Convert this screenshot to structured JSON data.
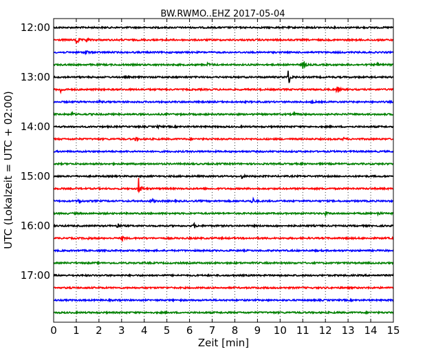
{
  "chart_data": {
    "type": "line",
    "title": "BW.RWMO..EHZ 2017-05-04",
    "xlabel": "Zeit  [min]",
    "ylabel": "UTC (Lokalzeit = UTC + 02:00)",
    "xlim": [
      0,
      15
    ],
    "x_ticks": [
      "0",
      "1",
      "2",
      "3",
      "4",
      "5",
      "6",
      "7",
      "8",
      "9",
      "10",
      "11",
      "12",
      "13",
      "14",
      "15"
    ],
    "y_ticks": [
      "12:00",
      "13:00",
      "14:00",
      "15:00",
      "16:00",
      "17:00"
    ],
    "grid": "vertical-dotted",
    "colors": [
      "#000000",
      "#ff0000",
      "#0000ff",
      "#008000"
    ],
    "traces": [
      {
        "start": "12:00",
        "events": []
      },
      {
        "start": "12:15",
        "events": [
          {
            "t": 1.0,
            "amp": 1.0
          },
          {
            "t": 1.45,
            "amp": 0.4
          },
          {
            "t": 4.9,
            "amp": 0.2
          }
        ]
      },
      {
        "start": "12:30",
        "events": [
          {
            "t": 1.4,
            "amp": 0.45
          }
        ]
      },
      {
        "start": "12:45",
        "events": [
          {
            "t": 6.8,
            "amp": 0.3
          },
          {
            "t": 11.0,
            "amp": 1.0
          },
          {
            "t": 14.3,
            "amp": 0.3
          }
        ]
      },
      {
        "start": "13:00",
        "events": [
          {
            "t": 10.35,
            "amp": 1.5
          }
        ]
      },
      {
        "start": "13:15",
        "events": [
          {
            "t": 0.3,
            "amp": 0.5
          },
          {
            "t": 12.5,
            "amp": 0.9
          }
        ]
      },
      {
        "start": "13:30",
        "events": [
          {
            "t": 2.0,
            "amp": 0.2
          },
          {
            "t": 11.4,
            "amp": 0.2
          }
        ]
      },
      {
        "start": "13:45",
        "events": [
          {
            "t": 0.8,
            "amp": 0.25
          },
          {
            "t": 10.6,
            "amp": 0.2
          }
        ]
      },
      {
        "start": "14:00",
        "events": [
          {
            "t": 4.6,
            "amp": 0.2
          }
        ]
      },
      {
        "start": "14:15",
        "events": [
          {
            "t": 3.6,
            "amp": 0.25
          },
          {
            "t": 12.8,
            "amp": 0.2
          }
        ]
      },
      {
        "start": "14:30",
        "events": []
      },
      {
        "start": "14:45",
        "events": []
      },
      {
        "start": "15:00",
        "events": [
          {
            "t": 8.3,
            "amp": 0.35
          }
        ]
      },
      {
        "start": "15:15",
        "events": [
          {
            "t": 3.75,
            "amp": 1.5
          }
        ]
      },
      {
        "start": "15:30",
        "events": [
          {
            "t": 1.1,
            "amp": 0.45
          },
          {
            "t": 4.3,
            "amp": 0.6
          },
          {
            "t": 8.75,
            "amp": 0.75
          }
        ]
      },
      {
        "start": "15:45",
        "events": [
          {
            "t": 12.0,
            "amp": 0.25
          },
          {
            "t": 14.3,
            "amp": 0.3
          }
        ]
      },
      {
        "start": "16:00",
        "events": [
          {
            "t": 2.8,
            "amp": 0.55
          },
          {
            "t": 6.2,
            "amp": 0.4
          },
          {
            "t": 9.8,
            "amp": 0.2
          }
        ]
      },
      {
        "start": "16:15",
        "events": [
          {
            "t": 1.5,
            "amp": 0.2
          },
          {
            "t": 3.0,
            "amp": 0.4
          }
        ]
      },
      {
        "start": "16:30",
        "events": []
      },
      {
        "start": "16:45",
        "events": []
      },
      {
        "start": "17:00",
        "events": []
      },
      {
        "start": "17:15",
        "events": []
      },
      {
        "start": "17:30",
        "events": []
      },
      {
        "start": "17:45",
        "events": []
      }
    ]
  }
}
